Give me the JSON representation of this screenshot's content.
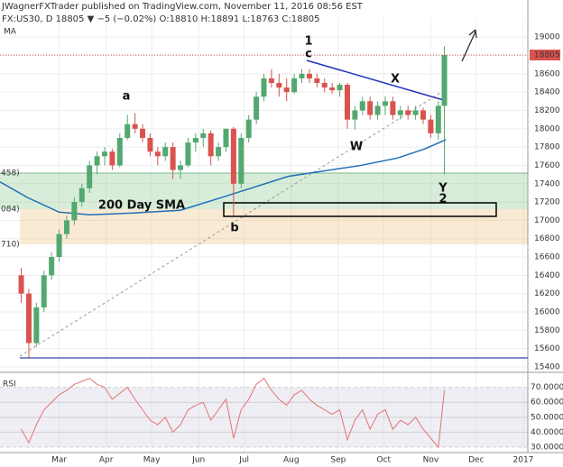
{
  "chart_data": [
    {
      "type": "candlestick",
      "title": "JWagnerFXTrader published on TradingView.com, November 11, 2016 08:56 EST",
      "subtitle": "FX:US30, D  18805 ▼ −5 (−0.02%) O:18810 H:18891 L:18763 C:18805",
      "indicator_label": "MA",
      "last_price": 18805,
      "x": [
        36,
        41,
        46,
        51,
        56,
        61,
        66,
        71,
        76,
        81,
        86,
        91,
        96,
        101,
        106,
        111,
        116,
        121,
        126,
        131,
        136,
        141,
        146,
        151,
        156,
        161,
        166,
        171,
        176,
        181,
        186,
        191,
        196,
        201,
        206,
        211,
        216,
        221,
        226,
        231,
        236,
        241,
        246,
        251,
        256,
        261,
        266,
        271,
        276,
        281,
        286,
        291,
        296,
        301,
        306,
        311,
        315
      ],
      "open": [
        16400,
        16200,
        15660,
        16050,
        16400,
        16600,
        16850,
        17000,
        17200,
        17350,
        17600,
        17700,
        17750,
        17600,
        17900,
        18050,
        18000,
        17900,
        17750,
        17700,
        17800,
        17550,
        17600,
        17850,
        17900,
        17950,
        17700,
        17800,
        18000,
        17400,
        17900,
        18100,
        18350,
        18550,
        18500,
        18450,
        18400,
        18550,
        18600,
        18550,
        18500,
        18450,
        18420,
        18480,
        18100,
        18200,
        18300,
        18150,
        18250,
        18300,
        18150,
        18200,
        18150,
        18200,
        18100,
        17950,
        18250
      ],
      "high": [
        16480,
        16250,
        16100,
        16450,
        16650,
        16900,
        17050,
        17250,
        17400,
        17650,
        17750,
        17800,
        17780,
        17950,
        18150,
        18170,
        18050,
        17950,
        17800,
        17850,
        17850,
        17650,
        17900,
        17950,
        18000,
        17980,
        17850,
        18000,
        18020,
        17950,
        18150,
        18400,
        18600,
        18650,
        18600,
        18550,
        18600,
        18650,
        18650,
        18600,
        18550,
        18500,
        18500,
        18500,
        18250,
        18350,
        18350,
        18300,
        18350,
        18350,
        18250,
        18250,
        18250,
        18230,
        18150,
        18300,
        18900
      ],
      "low": [
        16100,
        15500,
        15620,
        16000,
        16350,
        16550,
        16800,
        16950,
        17150,
        17300,
        17500,
        17600,
        17550,
        17580,
        17880,
        17950,
        17850,
        17700,
        17600,
        17650,
        17450,
        17450,
        17580,
        17750,
        17800,
        17600,
        17650,
        17750,
        17050,
        17350,
        17850,
        18050,
        18300,
        18450,
        18350,
        18300,
        18380,
        18500,
        18500,
        18450,
        18400,
        18380,
        18350,
        18000,
        17990,
        18150,
        18100,
        18100,
        18150,
        18100,
        18100,
        18100,
        18100,
        18050,
        17900,
        17880,
        17500
      ],
      "close": [
        16200,
        15660,
        16050,
        16400,
        16600,
        16850,
        17000,
        17200,
        17350,
        17600,
        17700,
        17750,
        17600,
        17900,
        18050,
        18000,
        17900,
        17750,
        17700,
        17800,
        17550,
        17600,
        17850,
        17900,
        17950,
        17700,
        17800,
        18000,
        17400,
        17900,
        18100,
        18350,
        18550,
        18500,
        18450,
        18400,
        18550,
        18600,
        18550,
        18500,
        18450,
        18420,
        18480,
        18100,
        18200,
        18300,
        18150,
        18250,
        18300,
        18150,
        18200,
        18150,
        18200,
        18100,
        17950,
        18250,
        18805
      ],
      "up_color": "#53a86f",
      "down_color": "#d9534f",
      "sma": {
        "color": "#1e6fb8",
        "x": [
          22,
          40,
          61,
          81,
          110,
          141,
          174,
          212,
          260,
          284,
          302,
          316
        ],
        "values": [
          17420,
          17250,
          17090,
          17060,
          17080,
          17110,
          17280,
          17480,
          17600,
          17680,
          17780,
          17880
        ]
      },
      "annotations": [
        "1",
        "c",
        "a",
        "X",
        "W",
        "Y",
        "2",
        "b",
        "200 Day SMA"
      ],
      "fib_labels": [
        "458)",
        "084)",
        "710)"
      ],
      "xlim": [
        22,
        370
      ],
      "xticks": [
        {
          "value": 61,
          "label": "Mar"
        },
        {
          "value": 92,
          "label": "Apr"
        },
        {
          "value": 122,
          "label": "May"
        },
        {
          "value": 153,
          "label": "Jun"
        },
        {
          "value": 183,
          "label": "Jul"
        },
        {
          "value": 214,
          "label": "Aug"
        },
        {
          "value": 245,
          "label": "Sep"
        },
        {
          "value": 275,
          "label": "Oct"
        },
        {
          "value": 306,
          "label": "Nov"
        },
        {
          "value": 336,
          "label": "Dec"
        },
        {
          "value": 367,
          "label": "2017"
        }
      ],
      "ylim": [
        15370,
        19130
      ],
      "yticks": [
        15400,
        15600,
        15800,
        16000,
        16200,
        16400,
        16600,
        16800,
        17000,
        17200,
        17400,
        17600,
        17800,
        18000,
        18200,
        18400,
        18600,
        18800,
        19000
      ],
      "grid": true
    },
    {
      "type": "line",
      "title": "RSI",
      "color": "#e57373",
      "values": [
        42,
        33,
        45,
        55,
        60,
        65,
        68,
        72,
        74,
        76,
        72,
        70,
        62,
        66,
        70,
        62,
        55,
        48,
        45,
        50,
        40,
        45,
        55,
        58,
        60,
        48,
        55,
        62,
        36,
        55,
        62,
        72,
        76,
        68,
        62,
        58,
        65,
        68,
        62,
        58,
        55,
        52,
        55,
        35,
        48,
        55,
        42,
        52,
        55,
        42,
        48,
        45,
        50,
        42,
        36,
        30,
        68
      ],
      "ylim": [
        27.6,
        77
      ],
      "yticks": [
        {
          "value": 70,
          "label": "70.0000"
        },
        {
          "value": 60,
          "label": "60.0000"
        },
        {
          "value": 50,
          "label": "50.0000"
        },
        {
          "value": 40,
          "label": "40.0000"
        },
        {
          "value": 30,
          "label": "30.0000"
        }
      ]
    }
  ]
}
